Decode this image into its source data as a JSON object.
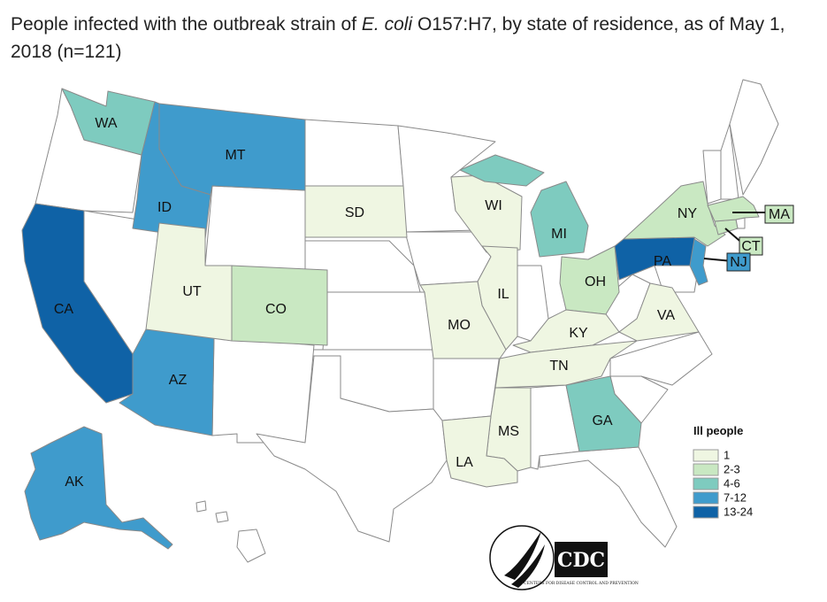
{
  "title": {
    "part1": "People infected with the outbreak strain of ",
    "organism": "E. coli",
    "part2": " O157:H7, by state of residence, as of May 1, 2018 (n=121)"
  },
  "colors": {
    "none": "#ffffff",
    "c1": "#eff6e2",
    "c2": "#c9e8c2",
    "c3": "#7ecbbf",
    "c4": "#3f9bcc",
    "c5": "#0f62a6",
    "border": "#8a8a8a"
  },
  "legend": {
    "title": "Ill people",
    "items": [
      {
        "label": "1",
        "color": "#eff6e2"
      },
      {
        "label": "2-3",
        "color": "#c9e8c2"
      },
      {
        "label": "4-6",
        "color": "#7ecbbf"
      },
      {
        "label": "7-12",
        "color": "#3f9bcc"
      },
      {
        "label": "13-24",
        "color": "#0f62a6"
      }
    ]
  },
  "states": {
    "WA": {
      "label": "WA",
      "bin": "4-6"
    },
    "MT": {
      "label": "MT",
      "bin": "7-12"
    },
    "ID": {
      "label": "ID",
      "bin": "7-12"
    },
    "CA": {
      "label": "CA",
      "bin": "13-24"
    },
    "AZ": {
      "label": "AZ",
      "bin": "7-12"
    },
    "AK": {
      "label": "AK",
      "bin": "7-12"
    },
    "UT": {
      "label": "UT",
      "bin": "1"
    },
    "CO": {
      "label": "CO",
      "bin": "2-3"
    },
    "SD": {
      "label": "SD",
      "bin": "1"
    },
    "WI": {
      "label": "WI",
      "bin": "1"
    },
    "MI": {
      "label": "MI",
      "bin": "4-6"
    },
    "IL": {
      "label": "IL",
      "bin": "1"
    },
    "MO": {
      "label": "MO",
      "bin": "1"
    },
    "OH": {
      "label": "OH",
      "bin": "2-3"
    },
    "KY": {
      "label": "KY",
      "bin": "1"
    },
    "TN": {
      "label": "TN",
      "bin": "1"
    },
    "VA": {
      "label": "VA",
      "bin": "1"
    },
    "GA": {
      "label": "GA",
      "bin": "4-6"
    },
    "MS": {
      "label": "MS",
      "bin": "1"
    },
    "LA": {
      "label": "LA",
      "bin": "1"
    },
    "PA": {
      "label": "PA",
      "bin": "13-24"
    },
    "NY": {
      "label": "NY",
      "bin": "2-3"
    },
    "NJ": {
      "label": "NJ",
      "bin": "7-12"
    },
    "CT": {
      "label": "CT",
      "bin": "2-3"
    },
    "MA": {
      "label": "MA",
      "bin": "2-3"
    }
  },
  "logos": {
    "hhs_icon": "hhs-eagle-seal-icon",
    "cdc_text": "CDC",
    "cdc_sub": "CENTERS FOR DISEASE CONTROL AND PREVENTION"
  }
}
